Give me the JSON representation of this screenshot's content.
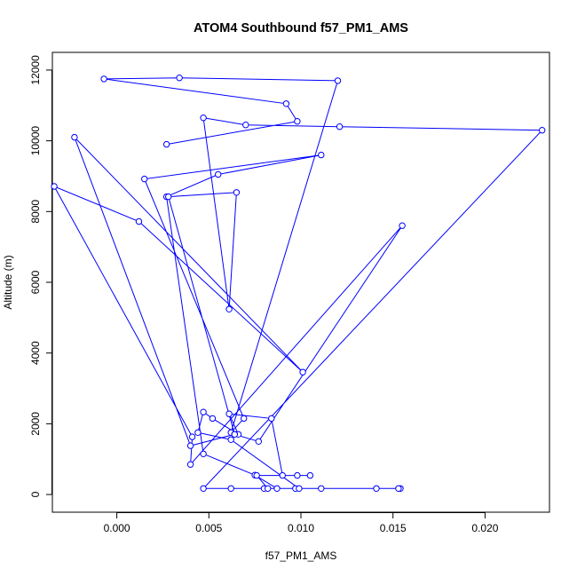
{
  "chart_data": {
    "type": "line",
    "title": "ATOM4 Southbound f57_PM1_AMS",
    "xlabel": "f57_PM1_AMS",
    "ylabel": "Altitude (m)",
    "xlim": [
      -0.0035,
      0.0235
    ],
    "ylim": [
      -500,
      12500
    ],
    "x_ticks": [
      0.0,
      0.005,
      0.01,
      0.015,
      0.02
    ],
    "x_tick_labels": [
      "0.000",
      "0.005",
      "0.010",
      "0.015",
      "0.020"
    ],
    "y_ticks": [
      0,
      2000,
      4000,
      6000,
      8000,
      10000,
      12000
    ],
    "y_tick_labels": [
      "0",
      "2000",
      "4000",
      "6000",
      "8000",
      "10000",
      "12000"
    ],
    "grid": false,
    "series": [
      {
        "color": "#0000ff",
        "marker": "open-circle",
        "x": [
          0.0027,
          0.0098,
          0.0092,
          -0.0007,
          0.0034,
          0.012,
          0.0062,
          0.0069,
          0.0015,
          0.0111,
          0.0055,
          0.0027,
          0.0047,
          0.0075,
          0.0087,
          0.008,
          0.0141,
          0.0154,
          0.0153,
          0.0111,
          0.0097,
          0.0099,
          0.0062,
          0.0044,
          0.0047,
          0.0052,
          0.0066,
          0.0061,
          0.0084,
          0.009,
          0.0098,
          0.0105,
          0.0076,
          0.0082,
          0.0062,
          0.0047,
          0.0231,
          0.0121,
          0.007,
          0.0047,
          0.0061,
          0.0065,
          0.0028,
          0.0064,
          0.0077,
          0.0155,
          0.004,
          0.0041,
          -0.0034,
          0.0012,
          0.0101,
          -0.0023,
          0.004,
          0.0064
        ],
        "y": [
          9900,
          10550,
          11050,
          11750,
          11780,
          11700,
          1750,
          2150,
          8920,
          9600,
          9050,
          8420,
          1150,
          550,
          170,
          170,
          170,
          170,
          170,
          170,
          170,
          170,
          1550,
          1750,
          2330,
          2150,
          1700,
          2280,
          2150,
          540,
          540,
          540,
          540,
          170,
          170,
          170,
          10300,
          10400,
          10450,
          10650,
          5240,
          8540,
          8420,
          1700,
          1500,
          7600,
          850,
          1630,
          8710,
          7720,
          3460,
          10100,
          1380,
          1700
        ]
      }
    ]
  }
}
